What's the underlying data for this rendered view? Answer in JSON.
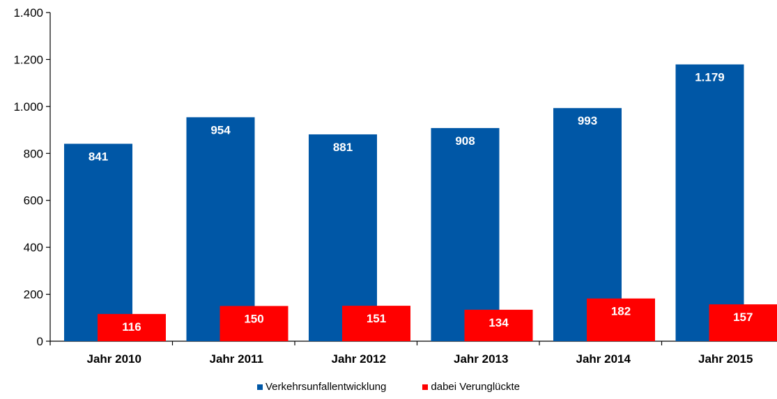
{
  "chart_data": {
    "type": "bar",
    "categories": [
      "Jahr 2010",
      "Jahr 2011",
      "Jahr 2012",
      "Jahr 2013",
      "Jahr 2014",
      "Jahr 2015"
    ],
    "series": [
      {
        "name": "Verkehrsunfallentwicklung",
        "color": "#0057a6",
        "values": [
          841,
          954,
          881,
          908,
          993,
          1179
        ],
        "labels": [
          "841",
          "954",
          "881",
          "908",
          "993",
          "1.179"
        ]
      },
      {
        "name": "dabei Verunglückte",
        "color": "#ff0000",
        "values": [
          116,
          150,
          151,
          134,
          182,
          157
        ],
        "labels": [
          "116",
          "150",
          "151",
          "134",
          "182",
          "157"
        ]
      }
    ],
    "ylim": [
      0,
      1400
    ],
    "yticks": [
      0,
      200,
      400,
      600,
      800,
      1000,
      1200,
      1400
    ],
    "ytick_labels": [
      "0",
      "200",
      "400",
      "600",
      "800",
      "1.000",
      "1.200",
      "1.400"
    ],
    "grid": false,
    "legend_position": "bottom-center",
    "title": "",
    "xlabel": "",
    "ylabel": ""
  }
}
